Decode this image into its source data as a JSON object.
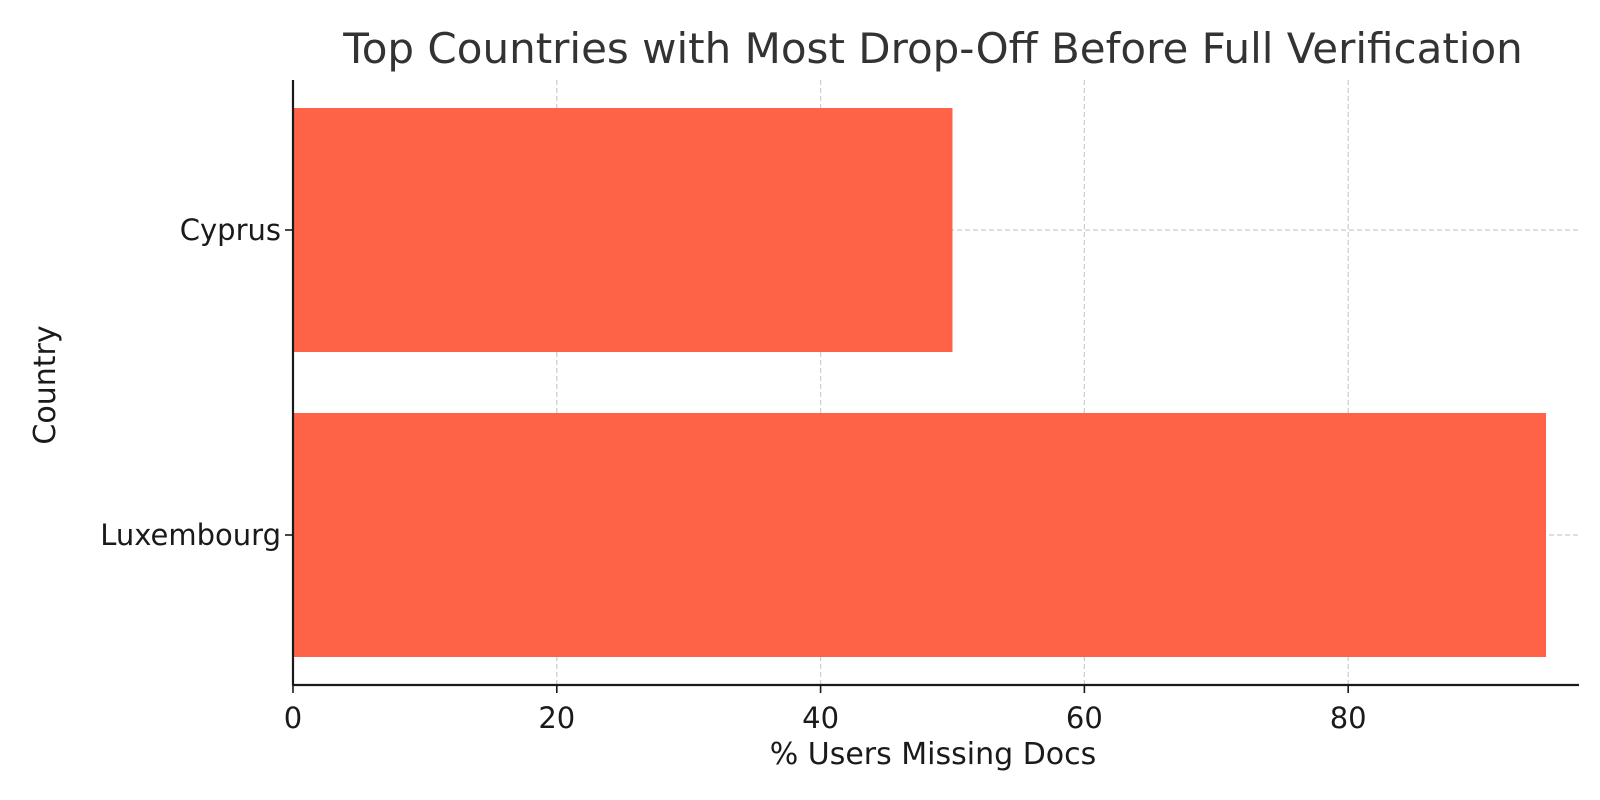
{
  "chart_data": {
    "type": "bar",
    "orientation": "horizontal",
    "title": "Top Countries with Most Drop-Off Before Full Verification",
    "xlabel": "% Users Missing Docs",
    "ylabel": "Country",
    "categories": [
      "Luxembourg",
      "Cyprus"
    ],
    "values": [
      95,
      50
    ],
    "xlim": [
      0,
      100
    ],
    "xticks": [
      0,
      20,
      40,
      60,
      80
    ],
    "grid": true,
    "bar_color": "#ff6347"
  }
}
